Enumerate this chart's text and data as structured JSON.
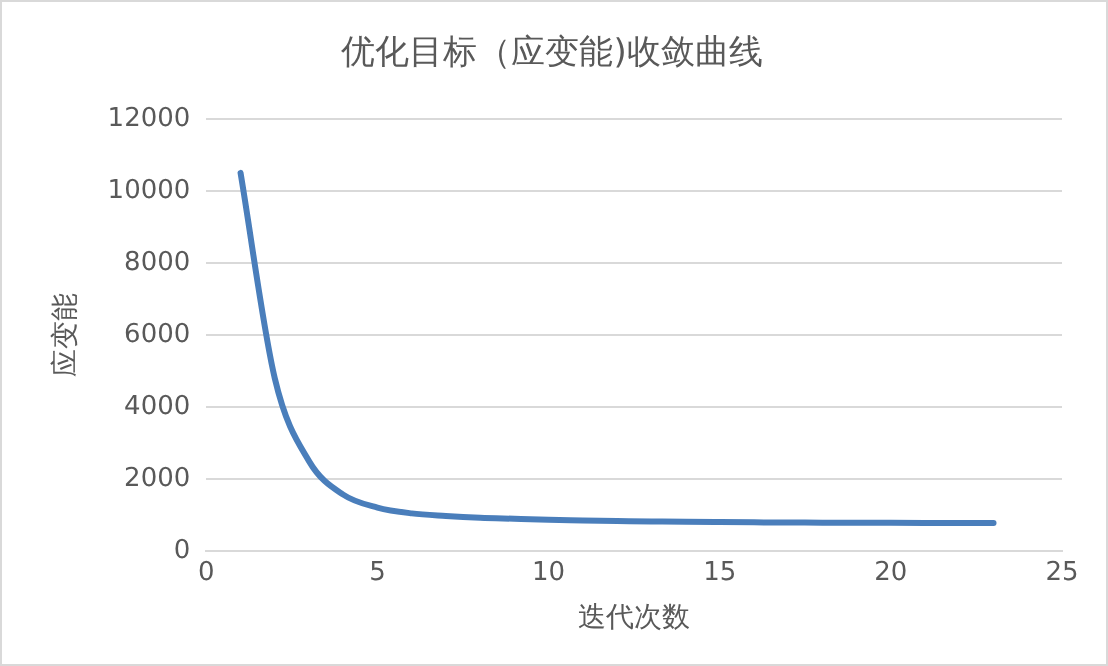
{
  "chart_data": {
    "type": "line",
    "title": "优化目标（应变能)收敛曲线",
    "xlabel": "迭代次数",
    "ylabel": "应变能",
    "x": [
      1,
      2,
      3,
      4,
      5,
      6,
      7,
      8,
      9,
      10,
      11,
      12,
      13,
      14,
      15,
      16,
      17,
      18,
      19,
      20,
      21,
      22,
      23
    ],
    "series": [
      {
        "color": "#4a7ebb",
        "values": [
          10500,
          4800,
          2500,
          1570,
          1210,
          1050,
          980,
          930,
          900,
          870,
          850,
          835,
          825,
          815,
          808,
          800,
          795,
          792,
          790,
          788,
          785,
          782,
          780
        ]
      }
    ],
    "xlim": [
      0,
      25
    ],
    "xticks": [
      0,
      5,
      10,
      15,
      20,
      25
    ],
    "ylim": [
      0,
      12000
    ],
    "yticks": [
      0,
      2000,
      4000,
      6000,
      8000,
      10000,
      12000
    ],
    "grid": "y",
    "legend": false,
    "marker": "none",
    "line_style": "solid"
  }
}
